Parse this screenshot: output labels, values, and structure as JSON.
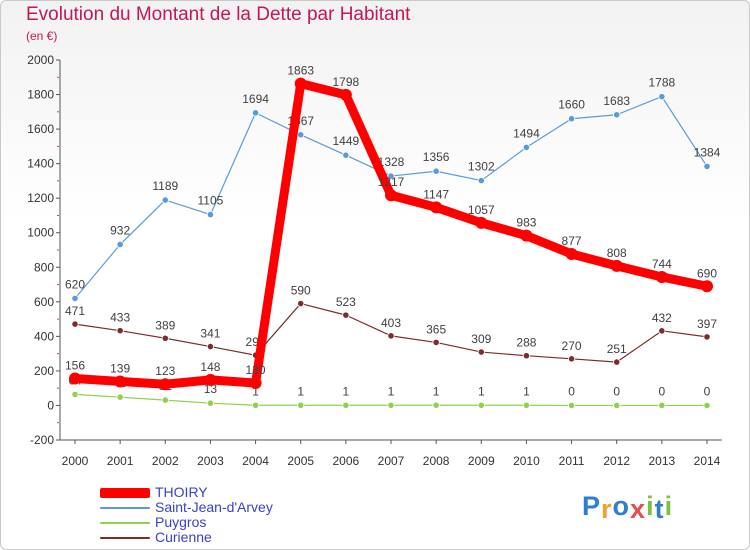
{
  "title": "Evolution du Montant de la Dette par Habitant",
  "subtitle": "(en €)",
  "logo_text": "Proxiti",
  "chart_data": {
    "type": "line",
    "title": "Evolution du Montant de la Dette par Habitant",
    "subtitle": "(en €)",
    "categories": [
      "2000",
      "2001",
      "2002",
      "2003",
      "2004",
      "2005",
      "2006",
      "2007",
      "2008",
      "2009",
      "2010",
      "2011",
      "2012",
      "2013",
      "2014"
    ],
    "ylim": [
      -200,
      2000
    ],
    "yticks": [
      -200,
      0,
      200,
      400,
      600,
      800,
      1000,
      1200,
      1400,
      1600,
      1800,
      2000
    ],
    "grid": false,
    "legend_position": "bottom-left",
    "series": [
      {
        "name": "THOIRY",
        "color": "#ff0000",
        "values": [
          156,
          139,
          123,
          148,
          130,
          1863,
          1798,
          1217,
          1147,
          1057,
          983,
          877,
          808,
          744,
          690
        ]
      },
      {
        "name": "Saint-Jean-d'Arvey",
        "color": "#5b9bd5",
        "values": [
          620,
          932,
          1189,
          1105,
          1694,
          1567,
          1449,
          1328,
          1356,
          1302,
          1494,
          1660,
          1683,
          1788,
          1384
        ]
      },
      {
        "name": "Puygros",
        "color": "#92d050",
        "values": [
          64,
          48,
          31,
          13,
          1,
          1,
          1,
          1,
          1,
          1,
          1,
          0,
          0,
          0,
          0
        ]
      },
      {
        "name": "Curienne",
        "color": "#7b2d2d",
        "values": [
          471,
          433,
          389,
          341,
          291,
          590,
          523,
          403,
          365,
          309,
          288,
          270,
          251,
          432,
          397
        ]
      }
    ]
  }
}
